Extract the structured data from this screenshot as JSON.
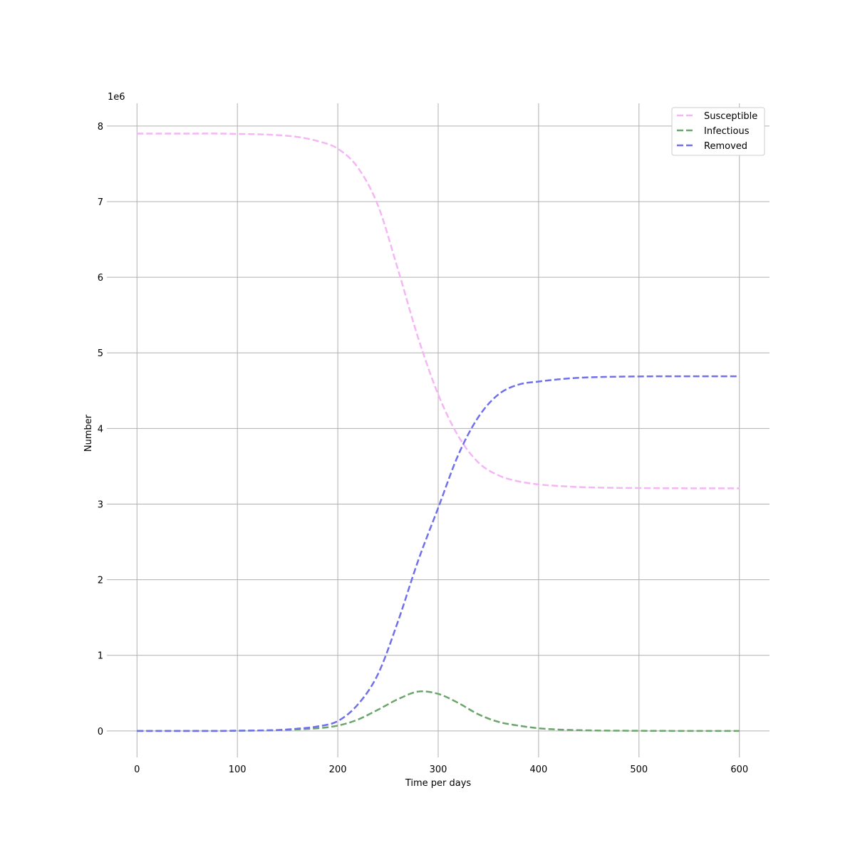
{
  "chart_data": {
    "type": "line",
    "title": "",
    "xlabel": "Time per days",
    "ylabel": "Number",
    "y_offset_label": "1e6",
    "xlim": [
      -30,
      630
    ],
    "ylim": [
      -0.35,
      8.3
    ],
    "y_scale_note": "values in millions (x 1e6)",
    "xticks": [
      0,
      100,
      200,
      300,
      400,
      500,
      600
    ],
    "yticks": [
      0,
      1,
      2,
      3,
      4,
      5,
      6,
      7,
      8
    ],
    "grid": true,
    "legend_position": "top-right",
    "x": [
      0,
      20,
      40,
      60,
      80,
      100,
      120,
      140,
      160,
      180,
      200,
      220,
      240,
      260,
      280,
      300,
      320,
      340,
      360,
      380,
      400,
      420,
      440,
      460,
      480,
      500,
      520,
      540,
      560,
      580,
      600
    ],
    "series": [
      {
        "name": "Susceptible",
        "color": "#f4b6f4",
        "values": [
          7.9,
          7.9,
          7.9,
          7.9,
          7.9,
          7.895,
          7.89,
          7.88,
          7.855,
          7.8,
          7.7,
          7.45,
          6.95,
          6.1,
          5.2,
          4.45,
          3.9,
          3.55,
          3.38,
          3.3,
          3.26,
          3.24,
          3.225,
          3.218,
          3.214,
          3.212,
          3.21,
          3.209,
          3.208,
          3.208,
          3.208
        ]
      },
      {
        "name": "Infectious",
        "color": "#6ba56b",
        "values": [
          0,
          0,
          0,
          0,
          0,
          0.002,
          0.005,
          0.01,
          0.02,
          0.035,
          0.07,
          0.15,
          0.28,
          0.42,
          0.52,
          0.49,
          0.37,
          0.22,
          0.12,
          0.07,
          0.035,
          0.018,
          0.01,
          0.005,
          0.003,
          0.002,
          0.001,
          0,
          0,
          0,
          0
        ]
      },
      {
        "name": "Removed",
        "color": "#7070ee",
        "values": [
          0,
          0,
          0,
          0,
          0,
          0.003,
          0.006,
          0.012,
          0.03,
          0.06,
          0.13,
          0.35,
          0.75,
          1.45,
          2.25,
          2.95,
          3.65,
          4.15,
          4.45,
          4.58,
          4.62,
          4.65,
          4.67,
          4.68,
          4.685,
          4.688,
          4.69,
          4.69,
          4.69,
          4.69,
          4.69
        ]
      }
    ]
  }
}
